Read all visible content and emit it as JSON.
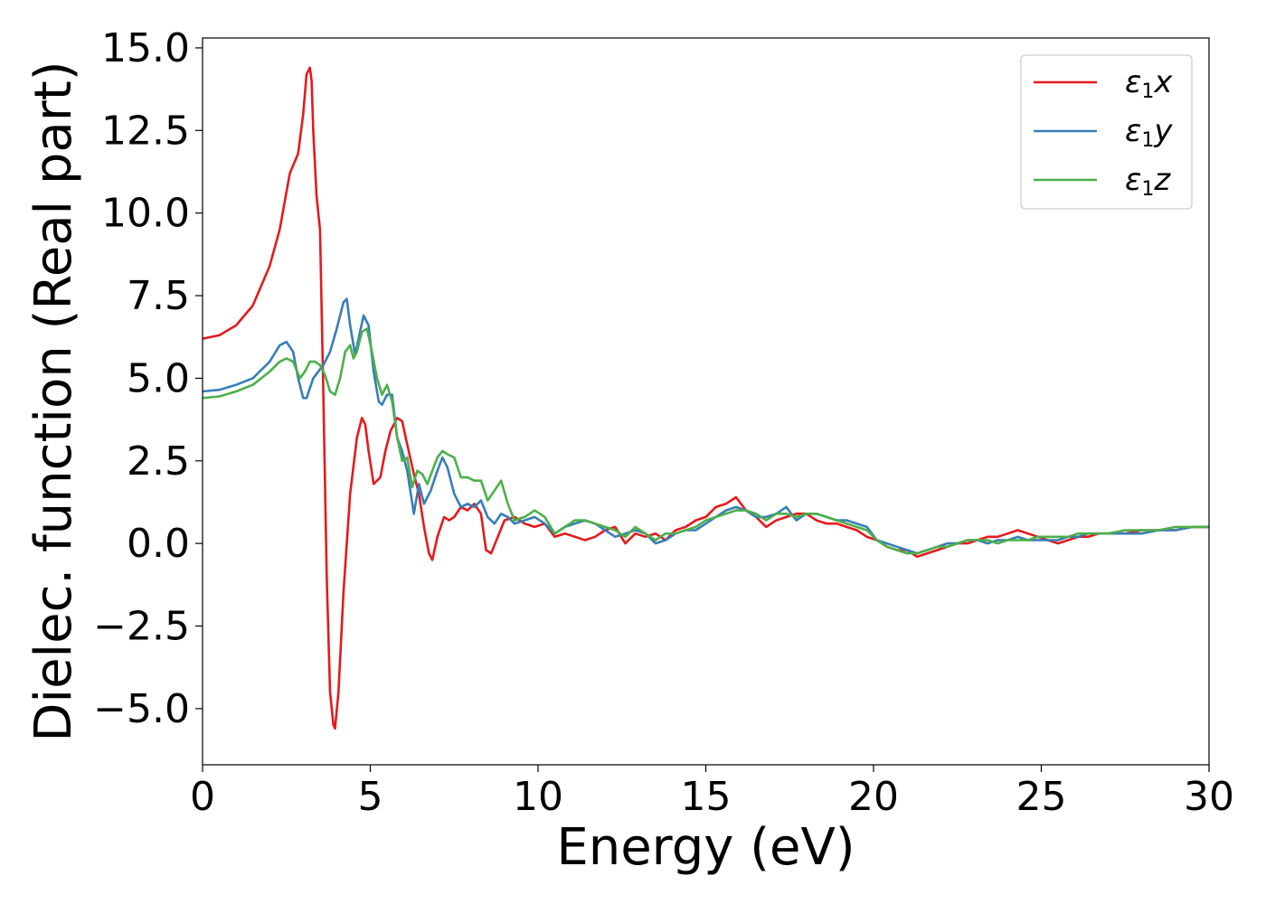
{
  "chart_data": {
    "type": "line",
    "title": "",
    "xlabel": "Energy (eV)",
    "ylabel": "Dielec. function (Real part)",
    "xlim": [
      0,
      30
    ],
    "ylim": [
      -6.7,
      15.3
    ],
    "xticks": [
      0,
      5,
      10,
      15,
      20,
      25,
      30
    ],
    "xtick_labels": [
      "0",
      "5",
      "10",
      "15",
      "20",
      "25",
      "30"
    ],
    "yticks": [
      -5.0,
      -2.5,
      0.0,
      2.5,
      5.0,
      7.5,
      10.0,
      12.5,
      15.0
    ],
    "ytick_labels": [
      "−5.0",
      "−2.5",
      "0.0",
      "2.5",
      "5.0",
      "7.5",
      "10.0",
      "12.5",
      "15.0"
    ],
    "grid": false,
    "legend_position": "top-right",
    "series": [
      {
        "name": "ε₁x",
        "legend_base": "ε",
        "legend_sub": "1",
        "legend_suffix": "x",
        "color": "#e41a1c",
        "x": [
          0,
          0.5,
          1.0,
          1.5,
          2.0,
          2.3,
          2.6,
          2.85,
          3.0,
          3.1,
          3.2,
          3.25,
          3.3,
          3.4,
          3.5,
          3.6,
          3.7,
          3.8,
          3.9,
          3.95,
          4.05,
          4.2,
          4.4,
          4.6,
          4.75,
          4.85,
          4.95,
          5.1,
          5.3,
          5.45,
          5.6,
          5.8,
          5.95,
          6.1,
          6.3,
          6.45,
          6.6,
          6.75,
          6.85,
          7.0,
          7.2,
          7.35,
          7.5,
          7.7,
          7.9,
          8.1,
          8.3,
          8.45,
          8.6,
          8.8,
          9.0,
          9.3,
          9.6,
          9.9,
          10.2,
          10.5,
          10.8,
          11.1,
          11.4,
          11.7,
          12.0,
          12.3,
          12.6,
          12.9,
          13.2,
          13.5,
          13.8,
          14.1,
          14.4,
          14.7,
          15.0,
          15.3,
          15.6,
          15.9,
          16.2,
          16.5,
          16.8,
          17.1,
          17.4,
          17.7,
          18.0,
          18.3,
          18.6,
          18.9,
          19.2,
          19.5,
          19.8,
          20.1,
          20.4,
          20.7,
          21.0,
          21.3,
          21.6,
          21.9,
          22.2,
          22.5,
          22.8,
          23.1,
          23.4,
          23.7,
          24.0,
          24.3,
          24.6,
          24.9,
          25.2,
          25.5,
          25.8,
          26.1,
          26.4,
          26.7,
          27.0,
          27.5,
          28.0,
          28.5,
          29.0,
          29.5,
          30.0
        ],
        "values": [
          6.2,
          6.3,
          6.6,
          7.2,
          8.4,
          9.5,
          11.2,
          11.8,
          13.0,
          14.2,
          14.4,
          14.0,
          12.5,
          10.5,
          9.5,
          4.5,
          -1.0,
          -4.5,
          -5.5,
          -5.6,
          -4.5,
          -1.5,
          1.5,
          3.2,
          3.8,
          3.6,
          2.8,
          1.8,
          2.0,
          2.8,
          3.4,
          3.8,
          3.7,
          3.0,
          2.1,
          1.5,
          0.5,
          -0.3,
          -0.5,
          0.2,
          0.8,
          0.7,
          0.8,
          1.1,
          1.0,
          1.2,
          0.9,
          -0.2,
          -0.3,
          0.2,
          0.7,
          0.8,
          0.6,
          0.5,
          0.6,
          0.2,
          0.3,
          0.2,
          0.1,
          0.2,
          0.4,
          0.5,
          0.0,
          0.3,
          0.2,
          0.3,
          0.1,
          0.4,
          0.5,
          0.7,
          0.8,
          1.1,
          1.2,
          1.4,
          1.0,
          0.8,
          0.5,
          0.7,
          0.8,
          0.9,
          0.9,
          0.7,
          0.6,
          0.6,
          0.5,
          0.4,
          0.2,
          0.1,
          -0.1,
          -0.2,
          -0.2,
          -0.4,
          -0.3,
          -0.2,
          -0.1,
          0.0,
          0.0,
          0.1,
          0.2,
          0.2,
          0.3,
          0.4,
          0.3,
          0.2,
          0.1,
          0.0,
          0.1,
          0.2,
          0.2,
          0.3,
          0.3,
          0.3,
          0.4,
          0.4,
          0.4,
          0.5,
          0.5
        ]
      },
      {
        "name": "ε₁y",
        "legend_base": "ε",
        "legend_sub": "1",
        "legend_suffix": "y",
        "color": "#377eb8",
        "x": [
          0,
          0.5,
          1.0,
          1.5,
          2.0,
          2.3,
          2.5,
          2.7,
          2.85,
          3.0,
          3.1,
          3.2,
          3.3,
          3.45,
          3.6,
          3.8,
          4.0,
          4.2,
          4.3,
          4.4,
          4.55,
          4.65,
          4.8,
          4.95,
          5.1,
          5.25,
          5.35,
          5.5,
          5.65,
          5.8,
          5.95,
          6.1,
          6.3,
          6.45,
          6.6,
          6.8,
          7.0,
          7.15,
          7.3,
          7.5,
          7.7,
          7.9,
          8.1,
          8.3,
          8.5,
          8.7,
          8.9,
          9.1,
          9.3,
          9.6,
          9.9,
          10.2,
          10.5,
          10.8,
          11.1,
          11.4,
          11.7,
          12.0,
          12.3,
          12.6,
          12.9,
          13.2,
          13.5,
          13.8,
          14.1,
          14.4,
          14.7,
          15.0,
          15.3,
          15.6,
          15.9,
          16.2,
          16.5,
          16.8,
          17.1,
          17.4,
          17.7,
          18.0,
          18.3,
          18.6,
          18.9,
          19.2,
          19.5,
          19.8,
          20.1,
          20.4,
          20.7,
          21.0,
          21.3,
          21.6,
          21.9,
          22.2,
          22.5,
          22.8,
          23.1,
          23.4,
          23.7,
          24.0,
          24.3,
          24.6,
          24.9,
          25.2,
          25.5,
          25.8,
          26.1,
          26.4,
          26.7,
          27.0,
          27.5,
          28.0,
          28.5,
          29.0,
          29.5,
          30.0
        ],
        "values": [
          4.6,
          4.65,
          4.8,
          5.0,
          5.5,
          6.0,
          6.1,
          5.8,
          5.0,
          4.4,
          4.4,
          4.7,
          5.0,
          5.2,
          5.4,
          5.8,
          6.5,
          7.3,
          7.4,
          6.6,
          5.7,
          6.2,
          6.9,
          6.6,
          5.2,
          4.3,
          4.2,
          4.5,
          4.5,
          3.2,
          2.8,
          2.2,
          0.9,
          1.8,
          1.2,
          1.6,
          2.2,
          2.6,
          2.3,
          1.5,
          1.1,
          1.2,
          1.1,
          1.3,
          0.8,
          0.6,
          0.9,
          0.8,
          0.6,
          0.7,
          0.8,
          0.6,
          0.3,
          0.5,
          0.6,
          0.7,
          0.6,
          0.4,
          0.2,
          0.3,
          0.4,
          0.3,
          0.0,
          0.1,
          0.3,
          0.4,
          0.4,
          0.6,
          0.8,
          1.0,
          1.1,
          1.0,
          0.8,
          0.8,
          0.9,
          1.1,
          0.7,
          0.9,
          0.9,
          0.8,
          0.7,
          0.7,
          0.6,
          0.5,
          0.1,
          0.0,
          -0.1,
          -0.2,
          -0.3,
          -0.2,
          -0.1,
          0.0,
          0.0,
          0.1,
          0.1,
          0.0,
          0.1,
          0.1,
          0.2,
          0.1,
          0.1,
          0.1,
          0.1,
          0.2,
          0.2,
          0.3,
          0.3,
          0.3,
          0.3,
          0.3,
          0.4,
          0.4,
          0.5,
          0.5
        ]
      },
      {
        "name": "ε₁z",
        "legend_base": "ε",
        "legend_sub": "1",
        "legend_suffix": "z",
        "color": "#4daf4a",
        "x": [
          0,
          0.5,
          1.0,
          1.5,
          2.0,
          2.3,
          2.5,
          2.7,
          2.9,
          3.05,
          3.2,
          3.35,
          3.5,
          3.65,
          3.8,
          3.95,
          4.1,
          4.25,
          4.4,
          4.5,
          4.6,
          4.75,
          4.9,
          5.05,
          5.2,
          5.35,
          5.5,
          5.65,
          5.8,
          5.95,
          6.1,
          6.25,
          6.4,
          6.55,
          6.7,
          6.85,
          7.0,
          7.15,
          7.3,
          7.5,
          7.7,
          7.9,
          8.1,
          8.3,
          8.5,
          8.7,
          8.9,
          9.1,
          9.3,
          9.6,
          9.9,
          10.2,
          10.5,
          10.8,
          11.1,
          11.4,
          11.7,
          12.0,
          12.3,
          12.6,
          12.9,
          13.2,
          13.5,
          13.8,
          14.1,
          14.4,
          14.7,
          15.0,
          15.3,
          15.6,
          15.9,
          16.2,
          16.5,
          16.8,
          17.1,
          17.4,
          17.7,
          18.0,
          18.3,
          18.6,
          18.9,
          19.2,
          19.5,
          19.8,
          20.1,
          20.4,
          20.7,
          21.0,
          21.3,
          21.6,
          21.9,
          22.2,
          22.5,
          22.8,
          23.1,
          23.4,
          23.7,
          24.0,
          24.3,
          24.6,
          24.9,
          25.2,
          25.5,
          25.8,
          26.1,
          26.4,
          26.7,
          27.0,
          27.5,
          28.0,
          28.5,
          29.0,
          29.5,
          30.0
        ],
        "values": [
          4.4,
          4.45,
          4.6,
          4.8,
          5.2,
          5.5,
          5.6,
          5.5,
          5.0,
          5.2,
          5.5,
          5.5,
          5.4,
          5.1,
          4.6,
          4.5,
          5.0,
          5.8,
          6.0,
          5.6,
          5.8,
          6.4,
          6.5,
          5.8,
          5.0,
          4.5,
          4.8,
          4.3,
          3.2,
          2.5,
          2.6,
          1.7,
          2.2,
          2.1,
          1.8,
          2.2,
          2.6,
          2.8,
          2.7,
          2.6,
          2.0,
          2.0,
          1.9,
          1.9,
          1.3,
          1.6,
          1.9,
          1.2,
          0.7,
          0.8,
          1.0,
          0.8,
          0.3,
          0.5,
          0.7,
          0.7,
          0.6,
          0.5,
          0.4,
          0.2,
          0.5,
          0.3,
          0.1,
          0.3,
          0.3,
          0.4,
          0.5,
          0.7,
          0.8,
          0.9,
          1.0,
          1.0,
          0.9,
          0.7,
          0.9,
          0.9,
          0.8,
          0.9,
          0.9,
          0.8,
          0.7,
          0.6,
          0.5,
          0.4,
          0.1,
          -0.1,
          -0.2,
          -0.3,
          -0.3,
          -0.2,
          -0.1,
          -0.1,
          0.0,
          0.1,
          0.1,
          0.1,
          0.0,
          0.1,
          0.1,
          0.1,
          0.2,
          0.2,
          0.2,
          0.2,
          0.3,
          0.3,
          0.3,
          0.3,
          0.4,
          0.4,
          0.4,
          0.5,
          0.5,
          0.5
        ]
      }
    ]
  }
}
